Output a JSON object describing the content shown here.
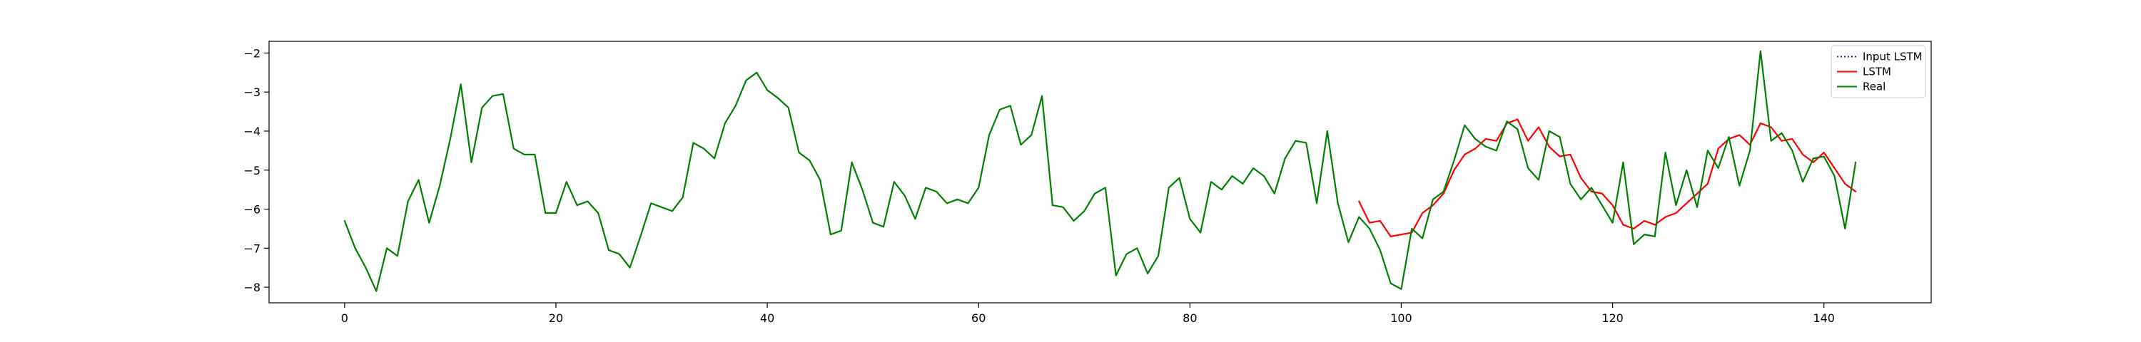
{
  "chart_data": {
    "type": "line",
    "title": "",
    "xlabel": "",
    "ylabel": "",
    "xlim": [
      -7.15,
      150.15
    ],
    "ylim": [
      -8.4,
      -1.7
    ],
    "x_ticks": [
      0,
      20,
      40,
      60,
      80,
      100,
      120,
      140
    ],
    "y_ticks": [
      -8,
      -7,
      -6,
      -5,
      -4,
      -3,
      -2
    ],
    "x_tick_labels": [
      "0",
      "20",
      "40",
      "60",
      "80",
      "100",
      "120",
      "140"
    ],
    "y_tick_labels": [
      "−8",
      "−7",
      "−6",
      "−5",
      "−4",
      "−3",
      "−2"
    ],
    "grid": false,
    "legend_position": "top-right",
    "series": [
      {
        "name": "Input LSTM",
        "color": "#1f1f8f",
        "style": "dotted",
        "x_start": 0,
        "values": []
      },
      {
        "name": "LSTM",
        "color": "#ff0000",
        "style": "solid",
        "x_start": 96,
        "values": [
          -5.8,
          -6.35,
          -6.3,
          -6.7,
          -6.65,
          -6.6,
          -6.1,
          -5.9,
          -5.6,
          -5.0,
          -4.6,
          -4.45,
          -4.2,
          -4.25,
          -3.8,
          -3.7,
          -4.25,
          -3.9,
          -4.4,
          -4.65,
          -4.6,
          -5.2,
          -5.55,
          -5.6,
          -5.9,
          -6.4,
          -6.5,
          -6.3,
          -6.4,
          -6.2,
          -6.1,
          -5.85,
          -5.6,
          -5.35,
          -4.45,
          -4.2,
          -4.1,
          -4.35,
          -3.8,
          -3.9,
          -4.25,
          -4.2,
          -4.6,
          -4.8,
          -4.55,
          -4.95,
          -5.35,
          -5.55
        ]
      },
      {
        "name": "Real",
        "color": "#008000",
        "style": "solid",
        "x_start": 0,
        "values": [
          -6.3,
          -7.0,
          -7.5,
          -8.1,
          -7.0,
          -7.2,
          -5.8,
          -5.25,
          -6.35,
          -5.4,
          -4.2,
          -2.8,
          -4.8,
          -3.4,
          -3.1,
          -3.05,
          -4.45,
          -4.6,
          -4.6,
          -6.1,
          -6.1,
          -5.3,
          -5.9,
          -5.8,
          -6.1,
          -7.05,
          -7.15,
          -7.5,
          -6.7,
          -5.85,
          -5.95,
          -6.05,
          -5.7,
          -4.3,
          -4.45,
          -4.7,
          -3.8,
          -3.35,
          -2.7,
          -2.5,
          -2.95,
          -3.15,
          -3.4,
          -4.55,
          -4.75,
          -5.25,
          -6.65,
          -6.55,
          -4.8,
          -5.5,
          -6.35,
          -6.45,
          -5.3,
          -5.65,
          -6.25,
          -5.45,
          -5.55,
          -5.85,
          -5.75,
          -5.85,
          -5.45,
          -4.1,
          -3.45,
          -3.35,
          -4.35,
          -4.1,
          -3.1,
          -5.9,
          -5.95,
          -6.3,
          -6.05,
          -5.6,
          -5.45,
          -7.7,
          -7.15,
          -7.0,
          -7.65,
          -7.2,
          -5.45,
          -5.2,
          -6.25,
          -6.6,
          -5.3,
          -5.5,
          -5.15,
          -5.35,
          -4.95,
          -5.15,
          -5.6,
          -4.7,
          -4.25,
          -4.3,
          -5.85,
          -4.0,
          -5.85,
          -6.85,
          -6.2,
          -6.5,
          -7.05,
          -7.9,
          -8.05,
          -6.5,
          -6.75,
          -5.75,
          -5.55,
          -4.75,
          -3.85,
          -4.2,
          -4.4,
          -4.5,
          -3.75,
          -3.95,
          -4.95,
          -5.25,
          -4.0,
          -4.15,
          -5.35,
          -5.75,
          -5.45,
          -5.9,
          -6.35,
          -4.8,
          -6.9,
          -6.65,
          -6.7,
          -4.55,
          -5.9,
          -5.0,
          -5.95,
          -4.5,
          -4.95,
          -4.15,
          -5.4,
          -4.5,
          -1.95,
          -4.25,
          -4.05,
          -4.5,
          -5.3,
          -4.7,
          -4.65,
          -5.15,
          -6.5,
          -4.8
        ]
      }
    ]
  }
}
